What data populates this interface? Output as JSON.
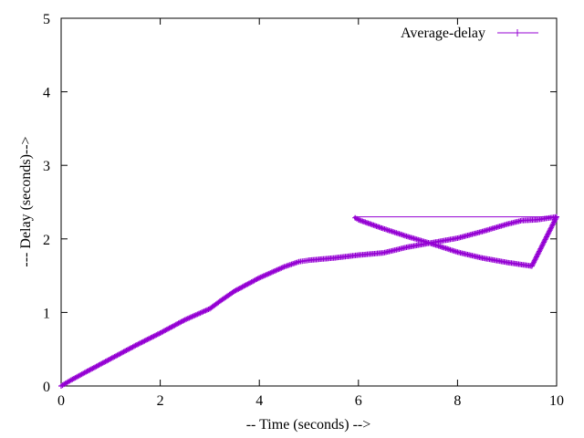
{
  "chart_data": {
    "type": "line",
    "title": "",
    "xlabel": "-- Time (seconds) -->",
    "ylabel": "--- Delay (seconds)-->",
    "xlim": [
      0,
      10
    ],
    "ylim": [
      0,
      5
    ],
    "xticks": [
      0,
      2,
      4,
      6,
      8,
      10
    ],
    "yticks": [
      0,
      1,
      2,
      3,
      4,
      5
    ],
    "grid": false,
    "legend_position": "top-right",
    "series": [
      {
        "name": "Average-delay",
        "color": "#9400d3",
        "marker": "plus",
        "x": [
          0,
          0.2,
          0.5,
          1.0,
          1.5,
          2.0,
          2.5,
          3.0,
          3.2,
          3.5,
          4.0,
          4.5,
          4.8,
          5.0,
          5.5,
          6.0,
          6.5,
          7.0,
          7.5,
          8.0,
          8.5,
          9.0,
          9.3,
          9.6,
          10.0,
          5.9,
          10.0,
          9.5,
          9.0,
          8.5,
          8.0,
          7.5,
          7.0,
          6.5,
          6.0,
          5.9
        ],
        "y": [
          0,
          0.08,
          0.19,
          0.37,
          0.55,
          0.72,
          0.9,
          1.05,
          1.15,
          1.29,
          1.47,
          1.62,
          1.69,
          1.71,
          1.74,
          1.78,
          1.81,
          1.89,
          1.95,
          2.01,
          2.1,
          2.2,
          2.25,
          2.26,
          2.3,
          2.3,
          2.3,
          1.63,
          1.68,
          1.74,
          1.82,
          1.93,
          2.03,
          2.14,
          2.26,
          2.3
        ]
      }
    ]
  }
}
